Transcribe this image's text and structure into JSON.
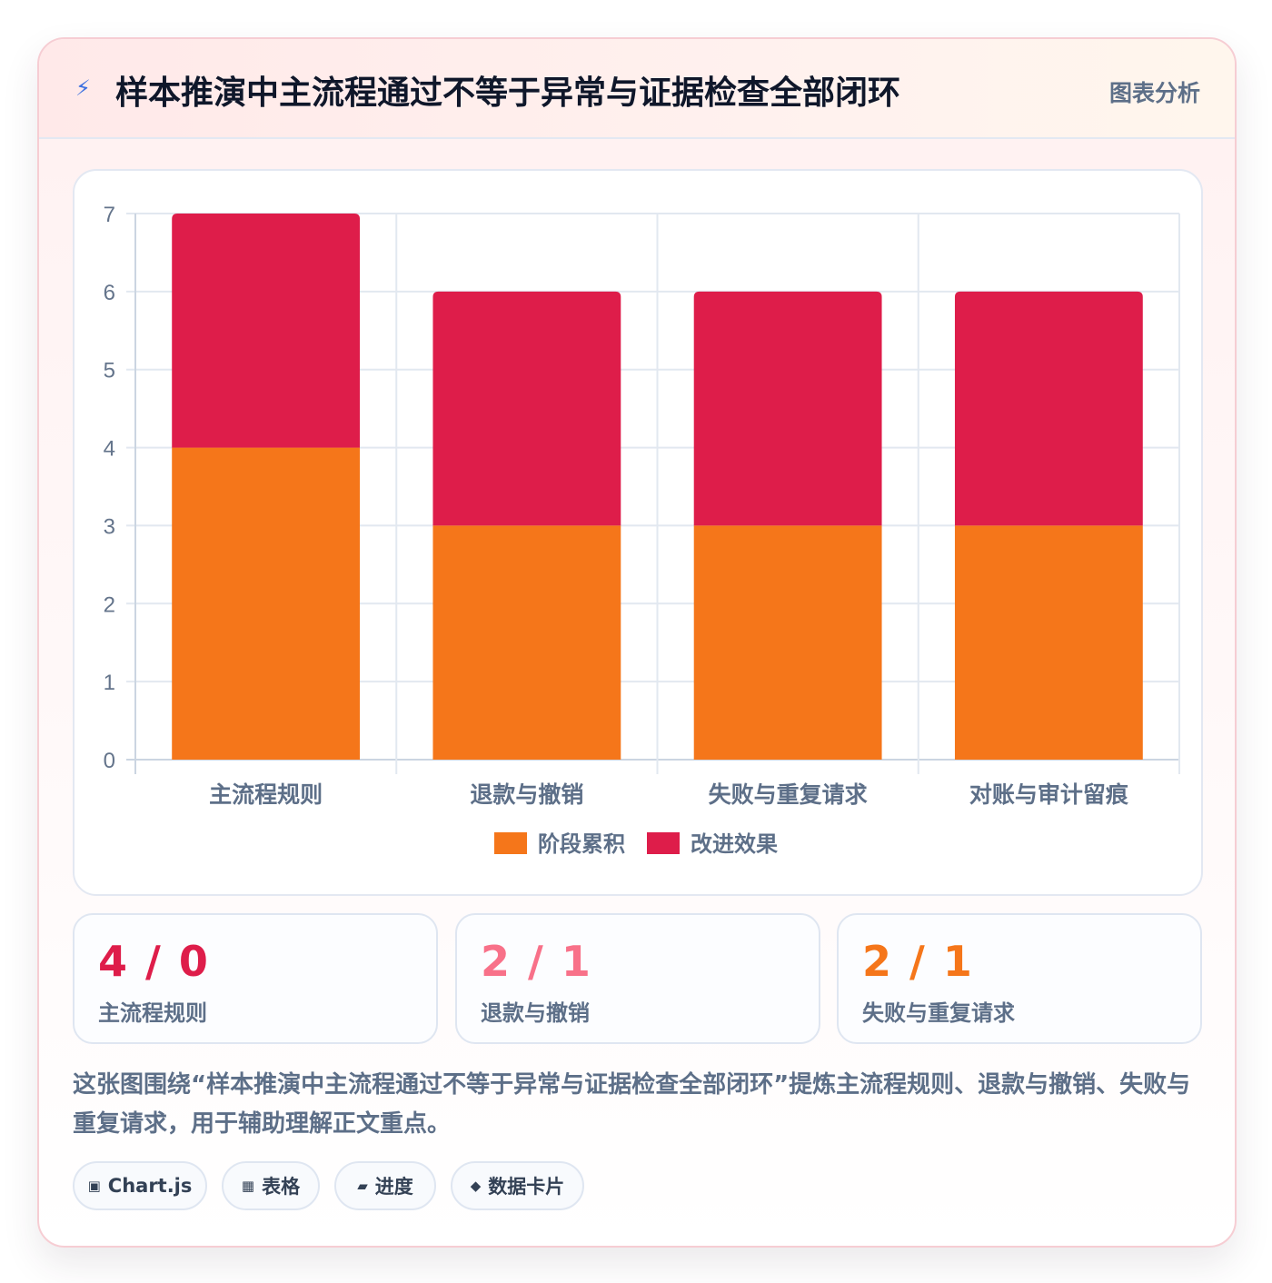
{
  "header": {
    "title": "样本推演中主流程通过不等于异常与证据检查全部闭环",
    "tag": "图表分析"
  },
  "chart_data": {
    "type": "bar",
    "stacked": true,
    "categories": [
      "主流程规则",
      "退款与撤销",
      "失败与重复请求",
      "对账与审计留痕"
    ],
    "series": [
      {
        "name": "阶段累积",
        "color": "#f5761a",
        "values": [
          4,
          3,
          3,
          3
        ]
      },
      {
        "name": "改进效果",
        "color": "#de1d4a",
        "values": [
          3,
          3,
          3,
          3
        ]
      }
    ],
    "ylim": [
      0,
      7
    ],
    "yticks": [
      "0",
      "1",
      "2",
      "3",
      "4",
      "5",
      "6",
      "7"
    ],
    "grid": true,
    "legend": "bottom"
  },
  "stats": [
    {
      "value": "4 / 0",
      "label": "主流程规则",
      "color": "#de1d4a"
    },
    {
      "value": "2 / 1",
      "label": "退款与撤销",
      "color": "#f87189"
    },
    {
      "value": "2 / 1",
      "label": "失败与重复请求",
      "color": "#f5761a"
    }
  ],
  "description": "这张图围绕“样本推演中主流程通过不等于异常与证据检查全部闭环”提炼主流程规则、退款与撤销、失败与重复请求，用于辅助理解正文重点。",
  "chips": [
    {
      "icon": "▣",
      "icon_name": "chart-icon",
      "label": "Chart.js"
    },
    {
      "icon": "▦",
      "icon_name": "table-icon",
      "label": "表格"
    },
    {
      "icon": "▰",
      "icon_name": "progress-icon",
      "label": "进度"
    },
    {
      "icon": "◆",
      "icon_name": "data-card-icon",
      "label": "数据卡片"
    }
  ]
}
